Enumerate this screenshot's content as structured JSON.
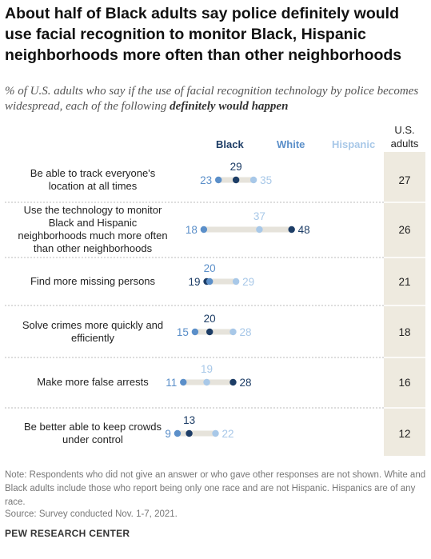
{
  "title": "About half of Black adults say police definitely would use facial recognition to monitor Black, Hispanic neighborhoods more often than other neighborhoods",
  "subtitle_prefix": "% of U.S. adults who say if the use of facial recognition technology by police becomes widespread, each of the following ",
  "subtitle_emphasis": "definitely would happen",
  "us_adults_label": "U.S. adults",
  "note": "Note: Respondents who did not give an answer or who gave other responses are not shown. White and Black adults include those who report being only one race and are not Hispanic. Hispanics are of any race.",
  "source": "Source: Survey conducted Nov. 1-7, 2021.",
  "footer": "PEW RESEARCH CENTER",
  "colors": {
    "black": "#1d3d66",
    "white": "#5b8fc9",
    "hispanic": "#a8c8e8",
    "band": "#eeeadf",
    "range": "#e6e3db"
  },
  "chart_data": {
    "type": "dot",
    "series": [
      {
        "name": "Black",
        "values": [
          29,
          48,
          19,
          20,
          28,
          13
        ]
      },
      {
        "name": "White",
        "values": [
          23,
          18,
          20,
          15,
          11,
          9
        ]
      },
      {
        "name": "Hispanic",
        "values": [
          35,
          37,
          29,
          28,
          19,
          22
        ]
      }
    ],
    "categories": [
      "Be able to track everyone's location at all times",
      "Use the technology to monitor Black and Hispanic neighborhoods much more often than other neighborhoods",
      "Find more missing persons",
      "Solve crimes more quickly and efficiently",
      "Make more false arrests",
      "Be better able to keep crowds under control"
    ],
    "us_adults": [
      27,
      26,
      21,
      18,
      16,
      12
    ]
  }
}
